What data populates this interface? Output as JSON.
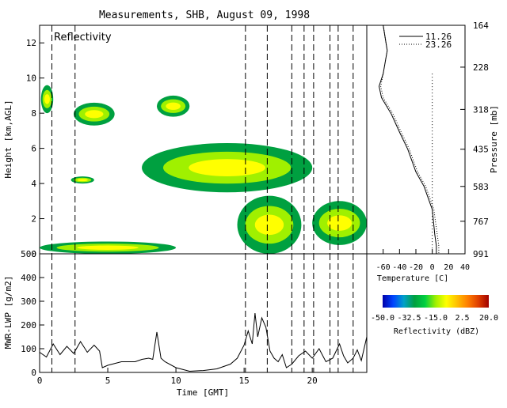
{
  "title": "Measurements, SHB, August 09, 1998",
  "chart_data": [
    {
      "type": "heatmap",
      "panel_label": "Reflectivity",
      "ylabel": "Height [km,AGL]",
      "ylim": [
        0,
        13
      ],
      "yticks": [
        0,
        2,
        4,
        6,
        8,
        10,
        12
      ],
      "xlim": [
        0,
        24
      ],
      "cloud_regions": [
        {
          "x0": 0.1,
          "x1": 1.0,
          "y0": 8.0,
          "y1": 9.6
        },
        {
          "x0": 2.5,
          "x1": 5.5,
          "y0": 7.3,
          "y1": 8.6
        },
        {
          "x0": 8.6,
          "x1": 11.0,
          "y0": 7.8,
          "y1": 9.0
        },
        {
          "x0": 7.5,
          "x1": 20.0,
          "y0": 3.5,
          "y1": 6.3
        },
        {
          "x0": 2.3,
          "x1": 4.0,
          "y0": 4.0,
          "y1": 4.4
        },
        {
          "x0": 14.5,
          "x1": 19.2,
          "y0": 0.0,
          "y1": 3.3
        },
        {
          "x0": 20.0,
          "x1": 24.0,
          "y0": 0.5,
          "y1": 3.0
        },
        {
          "x0": 0.0,
          "x1": 10.0,
          "y0": 0.0,
          "y1": 0.7
        }
      ],
      "sounding_times": [
        0.9,
        2.6,
        15.1,
        16.7,
        18.5,
        19.4,
        20.1,
        21.3,
        21.9,
        23.0
      ]
    },
    {
      "type": "line",
      "xlabel": "Time [GMT]",
      "ylabel": "MWR-LWP [g/m2]",
      "xlim": [
        0,
        24
      ],
      "ylim": [
        0,
        500
      ],
      "xticks": [
        0,
        5,
        10,
        15,
        20
      ],
      "yticks": [
        0,
        100,
        200,
        300,
        400,
        500
      ],
      "x": [
        0,
        0.5,
        1,
        1.5,
        2,
        2.5,
        3,
        3.5,
        4,
        4.4,
        4.6,
        5,
        6,
        7,
        7.5,
        8,
        8.3,
        8.6,
        8.9,
        9.2,
        10,
        11,
        12,
        13,
        14,
        14.5,
        15,
        15.3,
        15.6,
        15.8,
        16,
        16.3,
        16.6,
        16.9,
        17.2,
        17.5,
        17.8,
        18.1,
        18.5,
        19,
        19.5,
        20,
        20.5,
        21,
        21.5,
        22,
        22.3,
        22.6,
        23,
        23.3,
        23.6,
        24
      ],
      "y": [
        85,
        65,
        120,
        75,
        110,
        80,
        130,
        85,
        115,
        90,
        20,
        30,
        45,
        45,
        55,
        60,
        55,
        170,
        60,
        45,
        20,
        5,
        8,
        15,
        35,
        60,
        115,
        175,
        120,
        250,
        150,
        230,
        190,
        90,
        60,
        45,
        75,
        20,
        35,
        70,
        90,
        60,
        100,
        45,
        60,
        120,
        70,
        40,
        60,
        95,
        50,
        150
      ]
    },
    {
      "type": "line",
      "xlabel": "Temperature [C]",
      "ylabel": "Pressure [mb]",
      "xlim": [
        -80,
        40
      ],
      "xticks": [
        -60,
        -40,
        -20,
        0,
        20,
        40
      ],
      "pressure_ticks": [
        164,
        228,
        318,
        435,
        583,
        767,
        991
      ],
      "series": [
        {
          "name": "11.26",
          "style": "solid",
          "temperature": [
            -60,
            -55,
            -60,
            -65,
            -62,
            -50,
            -40,
            -30,
            -20,
            -10,
            0,
            3,
            5,
            5
          ],
          "pressure": [
            164,
            200,
            240,
            265,
            290,
            330,
            380,
            435,
            520,
            583,
            700,
            850,
            930,
            991
          ]
        },
        {
          "name": "23.26",
          "style": "dotted",
          "temperature": [
            -60,
            -55,
            -60,
            -63,
            -60,
            -48,
            -38,
            -28,
            -18,
            -8,
            2,
            6,
            8,
            8
          ],
          "pressure": [
            164,
            200,
            240,
            265,
            290,
            330,
            380,
            435,
            520,
            583,
            700,
            850,
            930,
            991
          ]
        }
      ],
      "vertical_marker_temperature": 0
    },
    {
      "type": "colorbar",
      "label": "Reflectivity (dBZ)",
      "range": [
        -50,
        20
      ],
      "tick_labels": [
        "-50.0",
        "-32.5",
        "-15.0",
        "2.5",
        "20.0"
      ],
      "colors": [
        "#0000aa",
        "#0044ff",
        "#00a0c8",
        "#00a040",
        "#00d040",
        "#a0f000",
        "#ffff00",
        "#ffc000",
        "#ff8000",
        "#e04000",
        "#a00000"
      ]
    }
  ]
}
